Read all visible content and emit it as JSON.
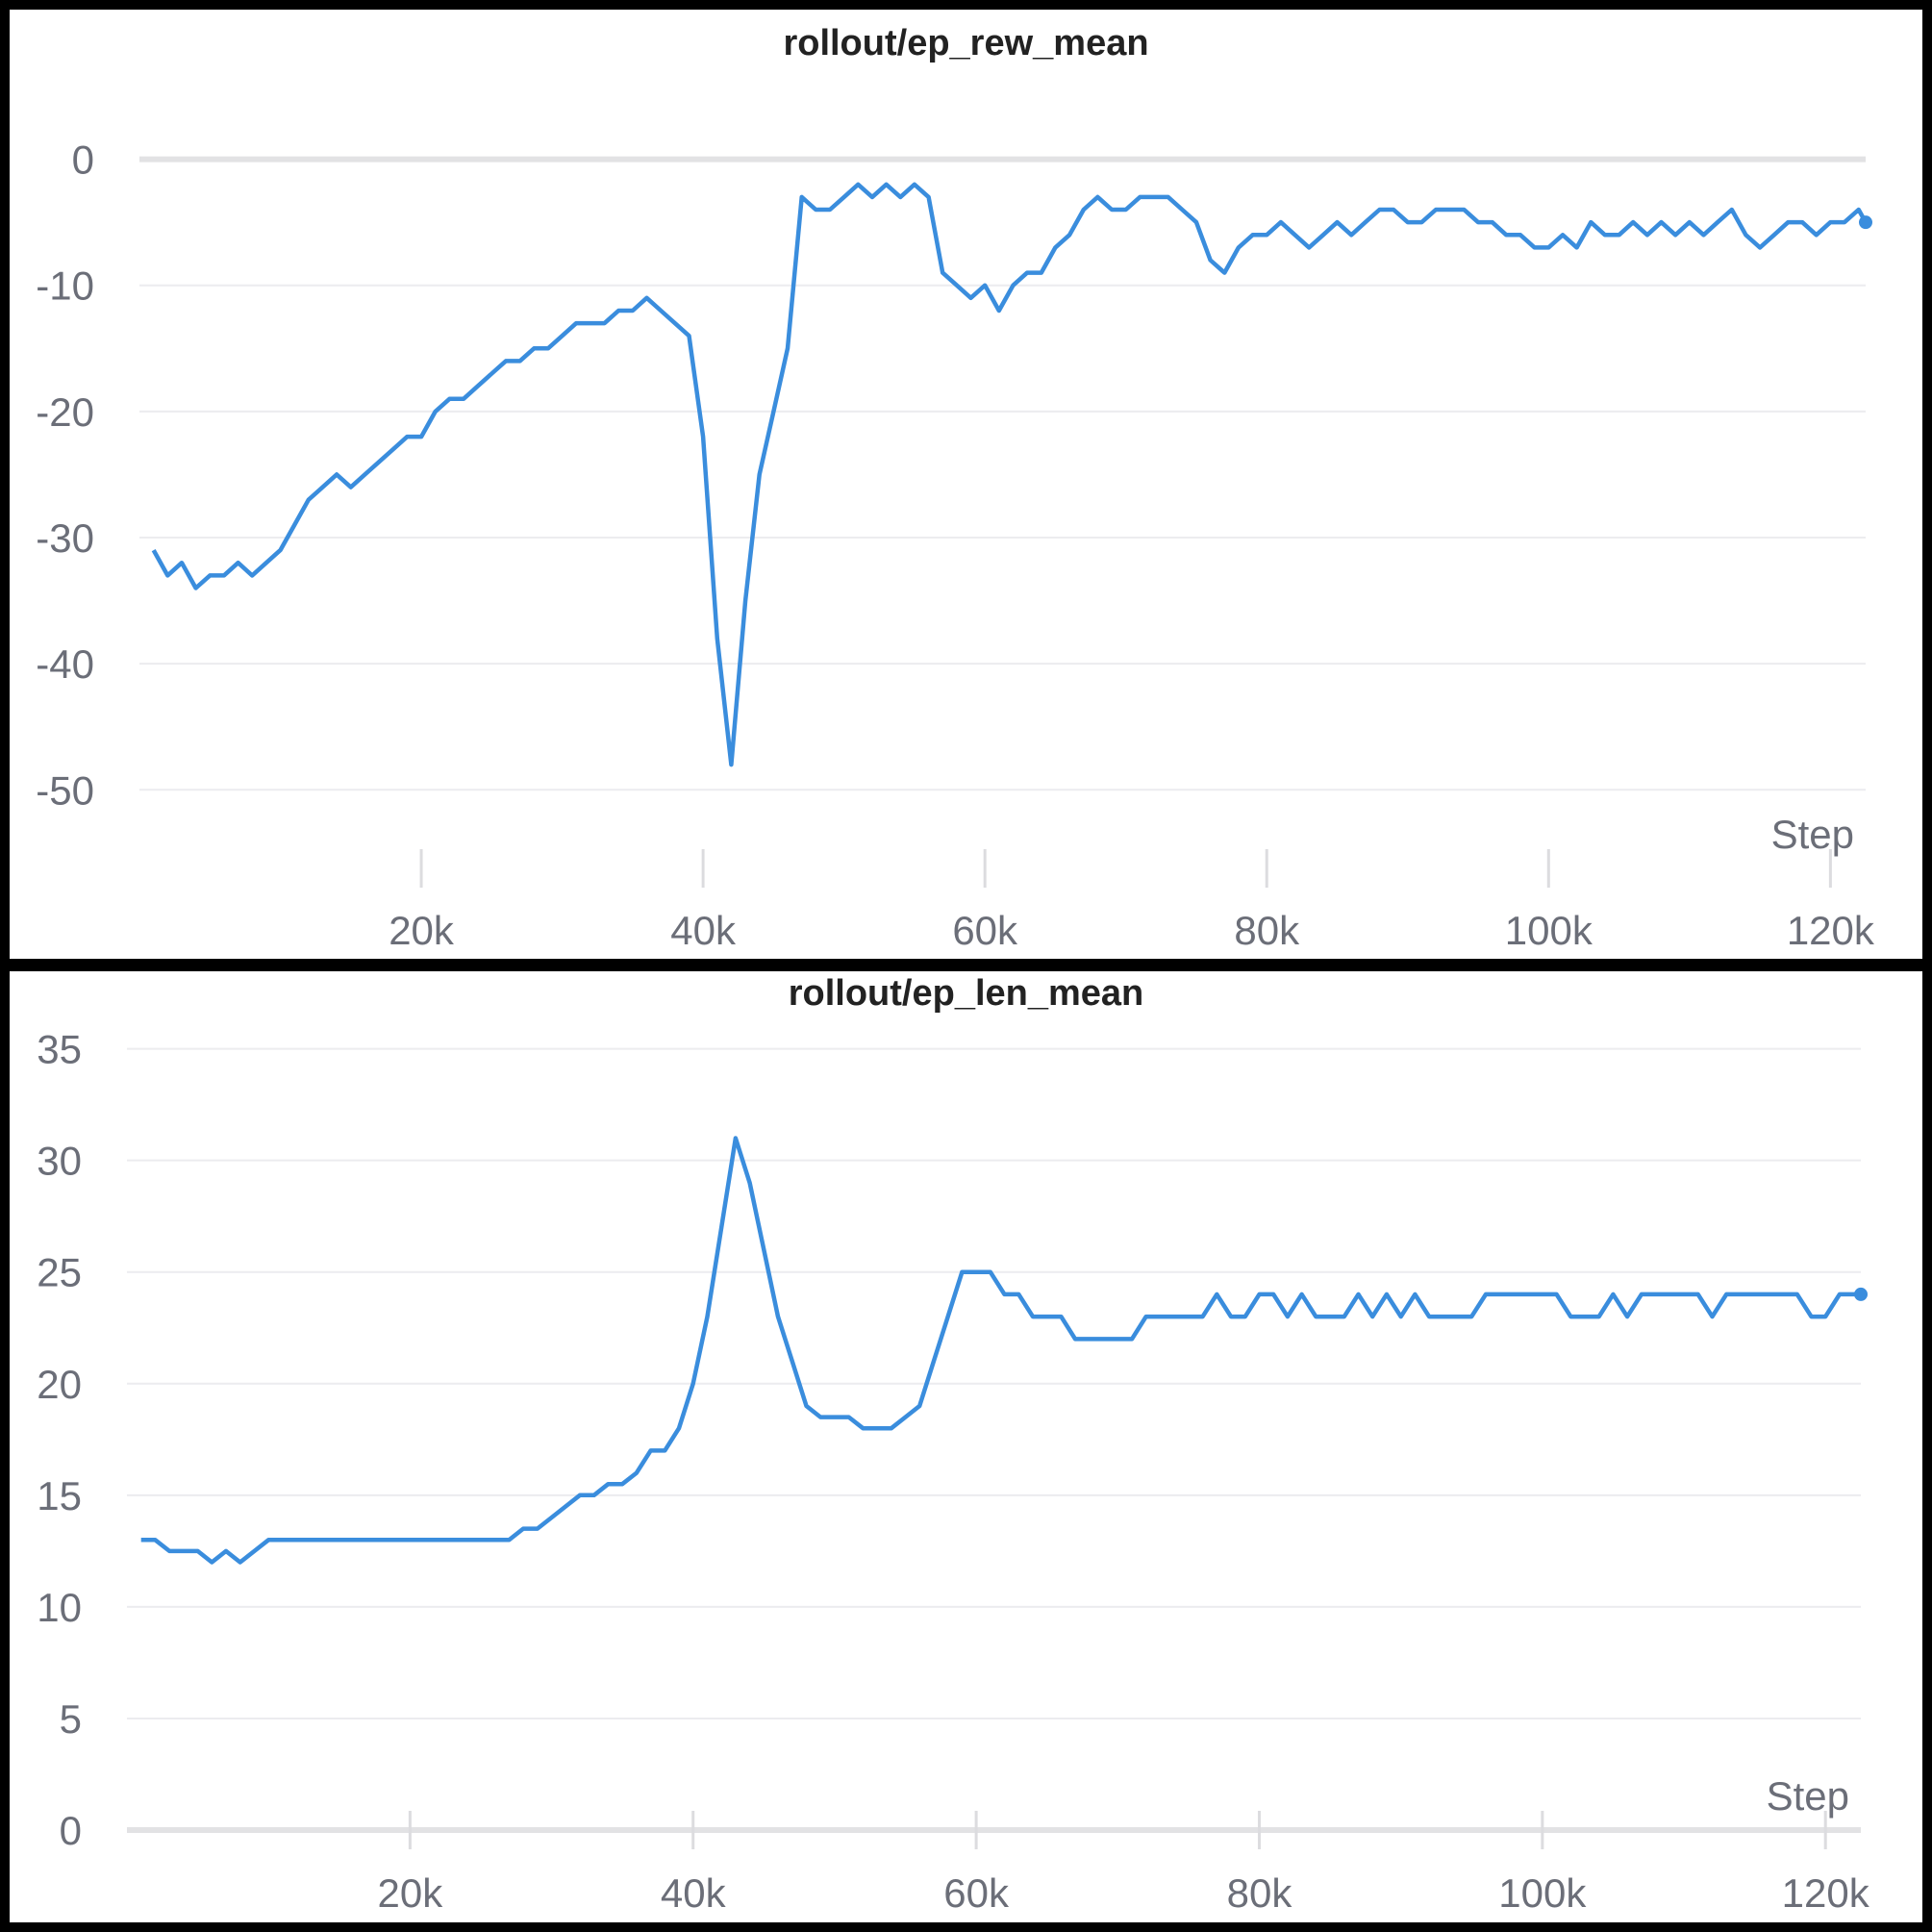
{
  "chart_data": [
    {
      "type": "line",
      "title": "rollout/ep_rew_mean",
      "xlabel": "Step",
      "ylabel": "",
      "xlim": [
        0,
        122500
      ],
      "ylim": [
        -56,
        5
      ],
      "x_ticks": [
        20000,
        40000,
        60000,
        80000,
        100000,
        120000
      ],
      "x_tick_labels": [
        "20k",
        "40k",
        "60k",
        "80k",
        "100k",
        "120k"
      ],
      "y_ticks": [
        0,
        -10,
        -20,
        -30,
        -40,
        -50
      ],
      "y_tick_labels": [
        "0",
        "-10",
        "-20",
        "-30",
        "-40",
        "-50"
      ],
      "grid": true,
      "legend": "none",
      "color": "#3a8ddd",
      "series": [
        {
          "x": [
            1000,
            2000,
            3000,
            4000,
            5000,
            6000,
            7000,
            8000,
            9000,
            10000,
            11000,
            12000,
            13000,
            14000,
            15000,
            16000,
            17000,
            18000,
            19000,
            20000,
            21000,
            22000,
            23000,
            24000,
            25000,
            26000,
            27000,
            28000,
            29000,
            30000,
            31000,
            32000,
            33000,
            34000,
            35000,
            36000,
            37000,
            38000,
            39000,
            40000,
            41000,
            42000,
            43000,
            44000,
            45000,
            46000,
            47000,
            48000,
            49000,
            50000,
            51000,
            52000,
            53000,
            54000,
            55000,
            56000,
            57000,
            58000,
            59000,
            60000,
            61000,
            62000,
            63000,
            64000,
            65000,
            66000,
            67000,
            68000,
            69000,
            70000,
            71000,
            72000,
            73000,
            74000,
            75000,
            76000,
            77000,
            78000,
            79000,
            80000,
            81000,
            82000,
            83000,
            84000,
            85000,
            86000,
            87000,
            88000,
            89000,
            90000,
            91000,
            92000,
            93000,
            94000,
            95000,
            96000,
            97000,
            98000,
            99000,
            100000,
            101000,
            102000,
            103000,
            104000,
            105000,
            106000,
            107000,
            108000,
            109000,
            110000,
            111000,
            112000,
            113000,
            114000,
            115000,
            116000,
            117000,
            118000,
            119000,
            120000,
            121000,
            122000,
            122500
          ],
          "y": [
            -31,
            -33,
            -32,
            -34,
            -33,
            -33,
            -32,
            -33,
            -32,
            -31,
            -29,
            -27,
            -26,
            -25,
            -26,
            -25,
            -24,
            -23,
            -22,
            -22,
            -20,
            -19,
            -19,
            -18,
            -17,
            -16,
            -16,
            -15,
            -15,
            -14,
            -13,
            -13,
            -13,
            -12,
            -12,
            -11,
            -12,
            -13,
            -14,
            -22,
            -38,
            -48,
            -35,
            -25,
            -20,
            -15,
            -3,
            -4,
            -4,
            -3,
            -2,
            -3,
            -2,
            -3,
            -2,
            -3,
            -9,
            -10,
            -11,
            -10,
            -12,
            -10,
            -9,
            -9,
            -7,
            -6,
            -4,
            -3,
            -4,
            -4,
            -3,
            -3,
            -3,
            -4,
            -5,
            -8,
            -9,
            -7,
            -6,
            -6,
            -5,
            -6,
            -7,
            -6,
            -5,
            -6,
            -5,
            -4,
            -4,
            -5,
            -5,
            -4,
            -4,
            -4,
            -5,
            -5,
            -6,
            -6,
            -7,
            -7,
            -6,
            -7,
            -5,
            -6,
            -6,
            -5,
            -6,
            -5,
            -6,
            -5,
            -6,
            -5,
            -4,
            -6,
            -7,
            -6,
            -5,
            -5,
            -6,
            -5,
            -5,
            -4,
            -5
          ]
        }
      ]
    },
    {
      "type": "line",
      "title": "rollout/ep_len_mean",
      "xlabel": "Step",
      "ylabel": "",
      "xlim": [
        0,
        122500
      ],
      "ylim": [
        0,
        35.5
      ],
      "x_ticks": [
        20000,
        40000,
        60000,
        80000,
        100000,
        120000
      ],
      "x_tick_labels": [
        "20k",
        "40k",
        "60k",
        "80k",
        "100k",
        "120k"
      ],
      "y_ticks": [
        0,
        5,
        10,
        15,
        20,
        25,
        30,
        35
      ],
      "y_tick_labels": [
        "0",
        "5",
        "10",
        "15",
        "20",
        "25",
        "30",
        "35"
      ],
      "grid": true,
      "legend": "none",
      "color": "#3a8ddd",
      "series": [
        {
          "x": [
            1000,
            2000,
            3000,
            4000,
            5000,
            6000,
            7000,
            8000,
            9000,
            10000,
            11000,
            12000,
            13000,
            14000,
            15000,
            16000,
            17000,
            18000,
            19000,
            20000,
            21000,
            22000,
            23000,
            24000,
            25000,
            26000,
            27000,
            28000,
            29000,
            30000,
            31000,
            32000,
            33000,
            34000,
            35000,
            36000,
            37000,
            38000,
            39000,
            40000,
            41000,
            42000,
            43000,
            44000,
            45000,
            46000,
            47000,
            48000,
            49000,
            50000,
            51000,
            52000,
            53000,
            54000,
            55000,
            56000,
            57000,
            58000,
            59000,
            60000,
            61000,
            62000,
            63000,
            64000,
            65000,
            66000,
            67000,
            68000,
            69000,
            70000,
            71000,
            72000,
            73000,
            74000,
            75000,
            76000,
            77000,
            78000,
            79000,
            80000,
            81000,
            82000,
            83000,
            84000,
            85000,
            86000,
            87000,
            88000,
            89000,
            90000,
            91000,
            92000,
            93000,
            94000,
            95000,
            96000,
            97000,
            98000,
            99000,
            100000,
            101000,
            102000,
            103000,
            104000,
            105000,
            106000,
            107000,
            108000,
            109000,
            110000,
            111000,
            112000,
            113000,
            114000,
            115000,
            116000,
            117000,
            118000,
            119000,
            120000,
            121000,
            122000,
            122500
          ],
          "y": [
            13,
            13,
            12.5,
            12.5,
            12.5,
            12,
            12.5,
            12,
            12.5,
            13,
            13,
            13,
            13,
            13,
            13,
            13,
            13,
            13,
            13,
            13,
            13,
            13,
            13,
            13,
            13,
            13,
            13,
            13.5,
            13.5,
            14,
            14.5,
            15,
            15,
            15.5,
            15.5,
            16,
            17,
            17,
            18,
            20,
            23,
            27,
            31,
            29,
            26,
            23,
            21,
            19,
            18.5,
            18.5,
            18.5,
            18,
            18,
            18,
            18.5,
            19,
            21,
            23,
            25,
            25,
            25,
            24,
            24,
            23,
            23,
            23,
            22,
            22,
            22,
            22,
            22,
            23,
            23,
            23,
            23,
            23,
            24,
            23,
            23,
            24,
            24,
            23,
            24,
            23,
            23,
            23,
            24,
            23,
            24,
            23,
            24,
            23,
            23,
            23,
            23,
            24,
            24,
            24,
            24,
            24,
            24,
            23,
            23,
            23,
            24,
            23,
            24,
            24,
            24,
            24,
            24,
            23,
            24,
            24,
            24,
            24,
            24,
            24,
            23,
            23,
            24,
            24,
            24
          ]
        }
      ]
    }
  ]
}
